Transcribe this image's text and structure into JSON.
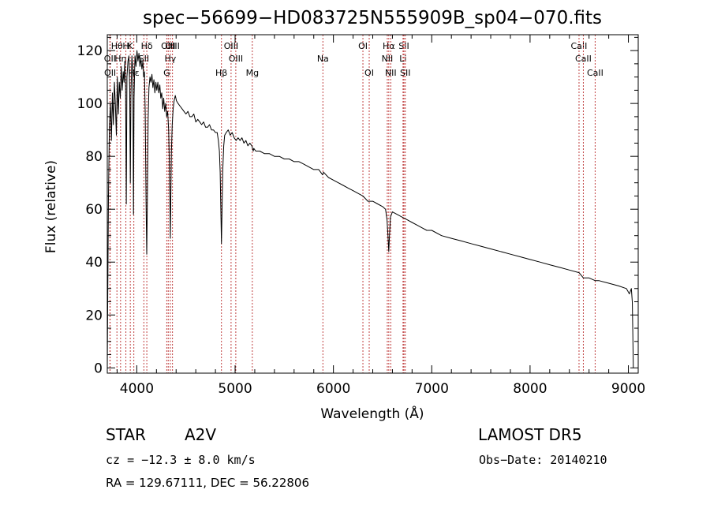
{
  "chart_data": {
    "type": "line",
    "title": "spec−56699−HD083725N555909B_sp04−070.fits",
    "xlabel": "Wavelength (Å)",
    "ylabel": "Flux (relative)",
    "xlim": [
      3700,
      9100
    ],
    "ylim": [
      -2,
      126
    ],
    "xticks": [
      4000,
      5000,
      6000,
      7000,
      8000,
      9000
    ],
    "yticks": [
      0,
      20,
      40,
      60,
      80,
      100,
      120
    ],
    "grid": false,
    "line_color": "#000000",
    "marker_line_color": "#c04040",
    "series": [
      {
        "points": [
          [
            3700,
            0
          ],
          [
            3705,
            28
          ],
          [
            3712,
            65
          ],
          [
            3722,
            92
          ],
          [
            3732,
            100
          ],
          [
            3742,
            86
          ],
          [
            3752,
            104
          ],
          [
            3762,
            92
          ],
          [
            3772,
            108
          ],
          [
            3782,
            100
          ],
          [
            3792,
            88
          ],
          [
            3802,
            110
          ],
          [
            3812,
            96
          ],
          [
            3822,
            108
          ],
          [
            3832,
            102
          ],
          [
            3842,
            114
          ],
          [
            3852,
            105
          ],
          [
            3862,
            112
          ],
          [
            3870,
            108
          ],
          [
            3878,
            116
          ],
          [
            3886,
            106
          ],
          [
            3893,
            62
          ],
          [
            3900,
            110
          ],
          [
            3910,
            116
          ],
          [
            3920,
            118
          ],
          [
            3928,
            106
          ],
          [
            3934,
            70
          ],
          [
            3940,
            102
          ],
          [
            3950,
            118
          ],
          [
            3960,
            112
          ],
          [
            3966,
            58
          ],
          [
            3972,
            102
          ],
          [
            3982,
            118
          ],
          [
            3992,
            114
          ],
          [
            4002,
            120
          ],
          [
            4012,
            116
          ],
          [
            4022,
            119
          ],
          [
            4032,
            114
          ],
          [
            4042,
            117
          ],
          [
            4052,
            113
          ],
          [
            4062,
            116
          ],
          [
            4070,
            110
          ],
          [
            4078,
            112
          ],
          [
            4086,
            96
          ],
          [
            4094,
            64
          ],
          [
            4101,
            43
          ],
          [
            4108,
            64
          ],
          [
            4116,
            94
          ],
          [
            4124,
            106
          ],
          [
            4134,
            110
          ],
          [
            4144,
            108
          ],
          [
            4154,
            111
          ],
          [
            4164,
            106
          ],
          [
            4174,
            109
          ],
          [
            4184,
            104
          ],
          [
            4194,
            108
          ],
          [
            4204,
            105
          ],
          [
            4214,
            108
          ],
          [
            4224,
            104
          ],
          [
            4234,
            107
          ],
          [
            4244,
            102
          ],
          [
            4254,
            104
          ],
          [
            4264,
            98
          ],
          [
            4274,
            102
          ],
          [
            4284,
            97
          ],
          [
            4294,
            100
          ],
          [
            4304,
            95
          ],
          [
            4314,
            97
          ],
          [
            4324,
            90
          ],
          [
            4330,
            80
          ],
          [
            4336,
            64
          ],
          [
            4341,
            49
          ],
          [
            4346,
            64
          ],
          [
            4352,
            82
          ],
          [
            4360,
            92
          ],
          [
            4370,
            98
          ],
          [
            4380,
            101
          ],
          [
            4392,
            103
          ],
          [
            4404,
            101
          ],
          [
            4420,
            100
          ],
          [
            4440,
            99
          ],
          [
            4460,
            98
          ],
          [
            4480,
            97
          ],
          [
            4500,
            96
          ],
          [
            4520,
            97
          ],
          [
            4540,
            95
          ],
          [
            4560,
            95
          ],
          [
            4580,
            96
          ],
          [
            4600,
            93
          ],
          [
            4620,
            94
          ],
          [
            4640,
            93
          ],
          [
            4660,
            92
          ],
          [
            4680,
            93
          ],
          [
            4700,
            91
          ],
          [
            4720,
            91
          ],
          [
            4740,
            92
          ],
          [
            4760,
            90
          ],
          [
            4780,
            90
          ],
          [
            4800,
            89
          ],
          [
            4818,
            89
          ],
          [
            4830,
            86
          ],
          [
            4840,
            82
          ],
          [
            4848,
            74
          ],
          [
            4854,
            62
          ],
          [
            4861,
            47
          ],
          [
            4868,
            62
          ],
          [
            4875,
            75
          ],
          [
            4884,
            84
          ],
          [
            4894,
            88
          ],
          [
            4910,
            89
          ],
          [
            4930,
            90
          ],
          [
            4950,
            88
          ],
          [
            4970,
            89
          ],
          [
            4990,
            87
          ],
          [
            5010,
            86
          ],
          [
            5030,
            87
          ],
          [
            5050,
            86
          ],
          [
            5070,
            87
          ],
          [
            5090,
            85
          ],
          [
            5110,
            86
          ],
          [
            5130,
            84
          ],
          [
            5150,
            85
          ],
          [
            5170,
            84
          ],
          [
            5184,
            82
          ],
          [
            5190,
            83
          ],
          [
            5210,
            82
          ],
          [
            5250,
            82
          ],
          [
            5300,
            81
          ],
          [
            5350,
            81
          ],
          [
            5400,
            80
          ],
          [
            5450,
            80
          ],
          [
            5500,
            79
          ],
          [
            5550,
            79
          ],
          [
            5600,
            78
          ],
          [
            5650,
            78
          ],
          [
            5700,
            77
          ],
          [
            5750,
            76
          ],
          [
            5800,
            75
          ],
          [
            5850,
            75
          ],
          [
            5890,
            73
          ],
          [
            5900,
            74
          ],
          [
            5950,
            72
          ],
          [
            6000,
            71
          ],
          [
            6050,
            70
          ],
          [
            6100,
            69
          ],
          [
            6150,
            68
          ],
          [
            6200,
            67
          ],
          [
            6250,
            66
          ],
          [
            6300,
            65
          ],
          [
            6350,
            63
          ],
          [
            6400,
            63
          ],
          [
            6450,
            62
          ],
          [
            6500,
            61
          ],
          [
            6530,
            60
          ],
          [
            6545,
            56
          ],
          [
            6555,
            50
          ],
          [
            6563,
            44
          ],
          [
            6570,
            50
          ],
          [
            6580,
            57
          ],
          [
            6600,
            59
          ],
          [
            6650,
            58
          ],
          [
            6700,
            57
          ],
          [
            6750,
            56
          ],
          [
            6800,
            55
          ],
          [
            6850,
            54
          ],
          [
            6900,
            53
          ],
          [
            6950,
            52
          ],
          [
            7000,
            52
          ],
          [
            7100,
            50
          ],
          [
            7200,
            49
          ],
          [
            7300,
            48
          ],
          [
            7400,
            47
          ],
          [
            7500,
            46
          ],
          [
            7600,
            45
          ],
          [
            7700,
            44
          ],
          [
            7800,
            43
          ],
          [
            7900,
            42
          ],
          [
            8000,
            41
          ],
          [
            8100,
            40
          ],
          [
            8200,
            39
          ],
          [
            8300,
            38
          ],
          [
            8400,
            37
          ],
          [
            8498,
            36
          ],
          [
            8542,
            34
          ],
          [
            8600,
            34
          ],
          [
            8662,
            33
          ],
          [
            8700,
            33
          ],
          [
            8800,
            32
          ],
          [
            8900,
            31
          ],
          [
            8980,
            30
          ],
          [
            9010,
            28
          ],
          [
            9030,
            30
          ],
          [
            9040,
            25
          ],
          [
            9045,
            14
          ],
          [
            9050,
            0
          ]
        ]
      }
    ],
    "line_markers": [
      {
        "label": "Hθ",
        "wavelength": 3798,
        "row": 1
      },
      {
        "label": "OII",
        "wavelength": 3727,
        "row": 2
      },
      {
        "label": "OII",
        "wavelength": 3729,
        "row": 3
      },
      {
        "label": "Hη",
        "wavelength": 3835,
        "row": 2
      },
      {
        "label": "H",
        "wavelength": 3889,
        "row": 1
      },
      {
        "label": "K",
        "wavelength": 3934,
        "row": 1
      },
      {
        "label": "Hε",
        "wavelength": 3970,
        "row": 3
      },
      {
        "label": "SII",
        "wavelength": 4072,
        "row": 2
      },
      {
        "label": "Hδ",
        "wavelength": 4102,
        "row": 1
      },
      {
        "label": "OIII",
        "wavelength": 4320,
        "row": 1
      },
      {
        "label": "Hγ",
        "wavelength": 4341,
        "row": 2
      },
      {
        "label": "G",
        "wavelength": 4305,
        "row": 3
      },
      {
        "label": "OIII",
        "wavelength": 4363,
        "row": 1
      },
      {
        "label": "Hβ",
        "wavelength": 4861,
        "row": 3
      },
      {
        "label": "OIII",
        "wavelength": 4959,
        "row": 1
      },
      {
        "label": "OIII",
        "wavelength": 5007,
        "row": 2
      },
      {
        "label": "Mg",
        "wavelength": 5175,
        "row": 3
      },
      {
        "label": "Na",
        "wavelength": 5893,
        "row": 2
      },
      {
        "label": "OI",
        "wavelength": 6300,
        "row": 1
      },
      {
        "label": "OI",
        "wavelength": 6364,
        "row": 3
      },
      {
        "label": "Hα",
        "wavelength": 6563,
        "row": 1
      },
      {
        "label": "NII",
        "wavelength": 6548,
        "row": 2
      },
      {
        "label": "NII",
        "wavelength": 6583,
        "row": 3
      },
      {
        "label": "SII",
        "wavelength": 6717,
        "row": 1
      },
      {
        "label": "Li",
        "wavelength": 6708,
        "row": 2
      },
      {
        "label": "SII",
        "wavelength": 6731,
        "row": 3
      },
      {
        "label": "CaII",
        "wavelength": 8498,
        "row": 1
      },
      {
        "label": "CaII",
        "wavelength": 8542,
        "row": 2
      },
      {
        "label": "CaII",
        "wavelength": 8662,
        "row": 3
      }
    ]
  },
  "info": {
    "object_class": "STAR",
    "subclass": "A2V",
    "survey": "LAMOST DR5",
    "redshift": "cz = −12.3 ± 8.0 km/s",
    "obs_date": "Obs−Date: 20140210",
    "coords": "RA = 129.67111, DEC =  56.22806"
  }
}
